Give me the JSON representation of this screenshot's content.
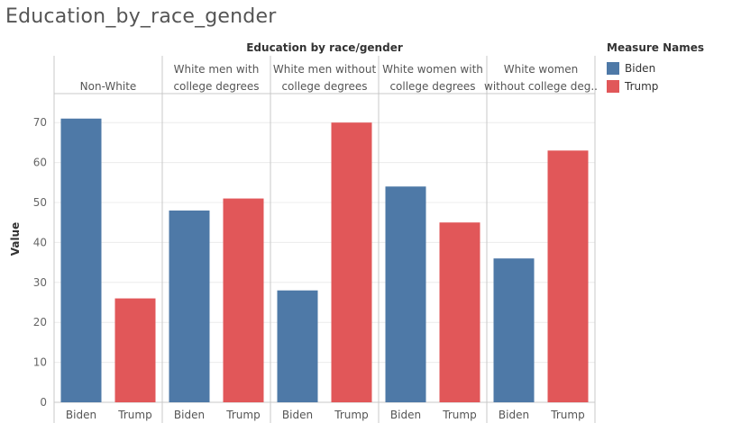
{
  "sheet_title": "Education_by_race_gender",
  "colors": {
    "Biden": "#4e79a7",
    "Trump": "#e15759"
  },
  "legend": {
    "title": "Measure Names",
    "items": [
      {
        "label": "Biden",
        "color": "#4e79a7"
      },
      {
        "label": "Trump",
        "color": "#e15759"
      }
    ]
  },
  "chart_data": {
    "type": "bar",
    "title": "Education by race/gender",
    "ylabel": "Value",
    "xlabel": "",
    "ylim": [
      0,
      75
    ],
    "yticks": [
      0,
      10,
      20,
      30,
      40,
      50,
      60,
      70
    ],
    "grid": true,
    "panels": [
      {
        "label_lines": [
          "Non-White"
        ],
        "categories": [
          "Biden",
          "Trump"
        ],
        "values": [
          71,
          26
        ]
      },
      {
        "label_lines": [
          "White men with",
          "college degrees"
        ],
        "categories": [
          "Biden",
          "Trump"
        ],
        "values": [
          48,
          51
        ]
      },
      {
        "label_lines": [
          "White men without",
          "college degrees"
        ],
        "categories": [
          "Biden",
          "Trump"
        ],
        "values": [
          28,
          70
        ]
      },
      {
        "label_lines": [
          "White women with",
          "college degrees"
        ],
        "categories": [
          "Biden",
          "Trump"
        ],
        "values": [
          54,
          45
        ]
      },
      {
        "label_lines": [
          "White women",
          "without college deg.."
        ],
        "categories": [
          "Biden",
          "Trump"
        ],
        "values": [
          36,
          63
        ]
      }
    ]
  }
}
